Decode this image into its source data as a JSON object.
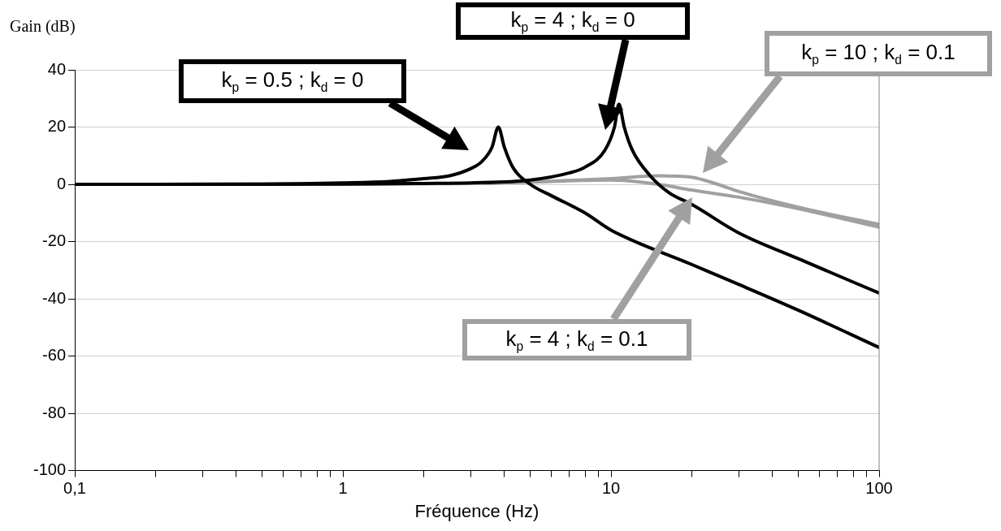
{
  "chart_data": {
    "type": "line",
    "xlabel": "Fréquence (Hz)",
    "ylabel": "Gain (dB)",
    "log": "x",
    "xlim": [
      0.1,
      100
    ],
    "ylim": [
      -100,
      40
    ],
    "xticks": [
      {
        "value": 0.1,
        "label": "0,1"
      },
      {
        "value": 0.2,
        "label": null
      },
      {
        "value": 0.3,
        "label": null
      },
      {
        "value": 0.4,
        "label": null
      },
      {
        "value": 0.5,
        "label": null
      },
      {
        "value": 0.6,
        "label": null
      },
      {
        "value": 0.7,
        "label": null
      },
      {
        "value": 0.8,
        "label": null
      },
      {
        "value": 0.9,
        "label": null
      },
      1,
      {
        "value": 2,
        "label": null
      },
      {
        "value": 3,
        "label": null
      },
      {
        "value": 4,
        "label": null
      },
      {
        "value": 5,
        "label": null
      },
      {
        "value": 6,
        "label": null
      },
      {
        "value": 7,
        "label": null
      },
      {
        "value": 8,
        "label": null
      },
      {
        "value": 9,
        "label": null
      },
      10,
      {
        "value": 20,
        "label": null
      },
      {
        "value": 30,
        "label": null
      },
      {
        "value": 40,
        "label": null
      },
      {
        "value": 50,
        "label": null
      },
      {
        "value": 60,
        "label": null
      },
      {
        "value": 70,
        "label": null
      },
      {
        "value": 80,
        "label": null
      },
      {
        "value": 90,
        "label": null
      },
      100
    ],
    "yticks": [
      -100,
      -80,
      -60,
      -40,
      -20,
      0,
      20,
      40
    ],
    "grid": "y",
    "legend": false,
    "marker": "none",
    "line_style": "solid",
    "series": [
      {
        "color": "#000000",
        "x": [
          0.1,
          0.5,
          1,
          1.5,
          2,
          2.5,
          3,
          3.3,
          3.6,
          3.8,
          4.0,
          4.3,
          5,
          6,
          8,
          10,
          20,
          30,
          50,
          100
        ],
        "values": [
          0,
          0.1,
          0.5,
          1,
          2,
          3,
          5.5,
          8,
          13,
          20,
          13,
          6,
          0,
          -4,
          -10,
          -16,
          -28,
          -35,
          -44,
          -57
        ]
      },
      {
        "color": "#000000",
        "x": [
          0.1,
          1,
          2,
          3,
          5,
          7,
          8,
          9.5,
          10.3,
          10.7,
          11.2,
          12,
          14,
          16.5,
          20,
          30,
          50,
          100
        ],
        "values": [
          0,
          0.1,
          0.3,
          0.5,
          1.5,
          4,
          6,
          12,
          20,
          28,
          20,
          12,
          3,
          -3,
          -7,
          -17,
          -26,
          -38
        ]
      },
      {
        "color": "#a0a0a0",
        "x": [
          0.1,
          1,
          3,
          5,
          10,
          15,
          20,
          25,
          30,
          50,
          100
        ],
        "values": [
          0,
          0.1,
          0.3,
          0.8,
          2,
          3,
          2.5,
          0,
          -2.5,
          -8,
          -14
        ]
      },
      {
        "color": "#a0a0a0",
        "x": [
          0.1,
          1,
          3,
          5,
          10,
          15,
          20,
          30,
          50,
          100
        ],
        "values": [
          0,
          0.1,
          0.3,
          0.8,
          1.5,
          0,
          -2,
          -4.5,
          -8.5,
          -15
        ]
      }
    ],
    "annotations": [
      "k$_{p}$ = 0.5 ; k$_{d}$ = 0",
      "k$_{p}$ = 4 ; k$_{d}$ = 0",
      "k$_{p}$ = 10 ; k$_{d}$ = 0.1",
      "k$_{p}$ = 4 ; k$_{d}$ = 0.1"
    ]
  }
}
